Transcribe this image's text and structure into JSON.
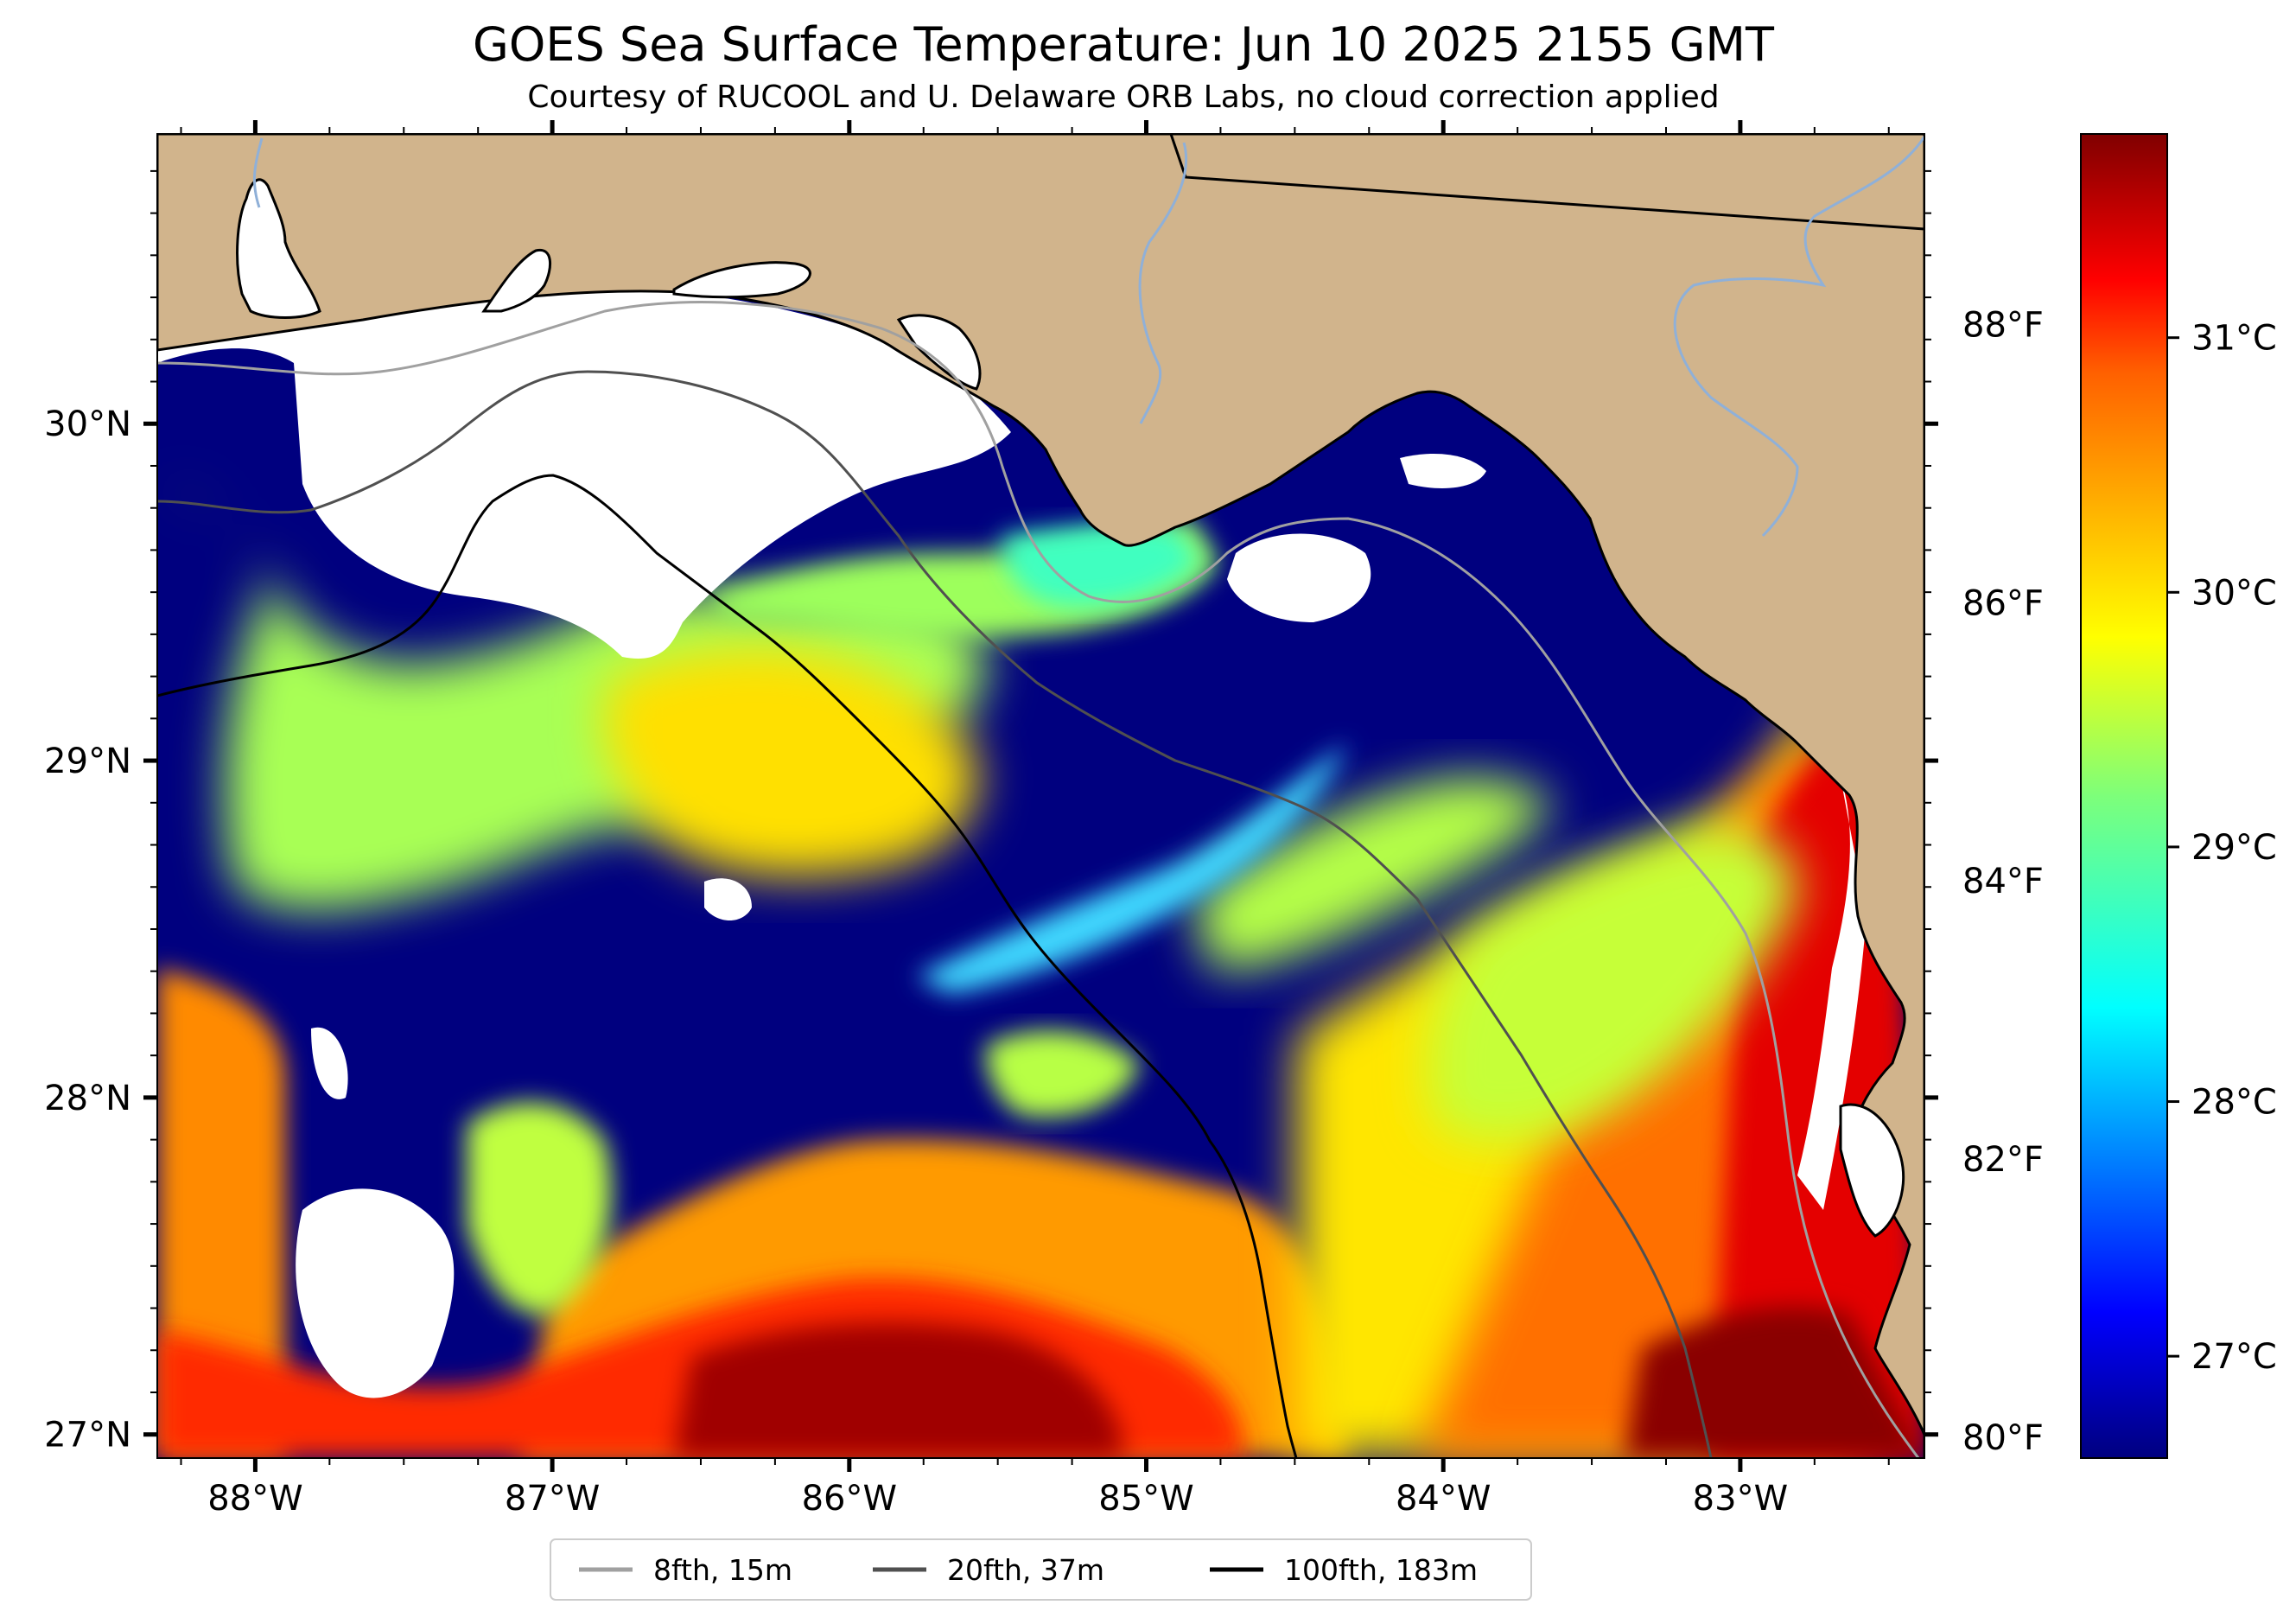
{
  "figure": {
    "title": "GOES Sea Surface Temperature: Jun 10 2025 2155 GMT",
    "subtitle": "Courtesy of RUCOOL and U. Delaware ORB Labs, no cloud correction applied"
  },
  "map": {
    "extent": {
      "lon_min": -88.33,
      "lon_max": -82.38,
      "lat_min": 26.93,
      "lat_max": 30.86
    },
    "colors": {
      "land": "#d1b48c",
      "cloud_no_data": "#ffffff",
      "coastline": "#000000",
      "rivers": "#8fb0d8"
    },
    "lon_ticks": [
      {
        "value": -88,
        "label": "88°W"
      },
      {
        "value": -87,
        "label": "87°W"
      },
      {
        "value": -86,
        "label": "86°W"
      },
      {
        "value": -85,
        "label": "85°W"
      },
      {
        "value": -84,
        "label": "84°W"
      },
      {
        "value": -83,
        "label": "83°W"
      }
    ],
    "lat_ticks": [
      {
        "value": 30,
        "label": "30°N"
      },
      {
        "value": 29,
        "label": "29°N"
      },
      {
        "value": 28,
        "label": "28°N"
      },
      {
        "value": 27,
        "label": "27°N"
      }
    ],
    "fahrenheit_ticks": [
      {
        "value": 88,
        "label": "88°F"
      },
      {
        "value": 86,
        "label": "86°F"
      },
      {
        "value": 84,
        "label": "84°F"
      },
      {
        "value": 82,
        "label": "82°F"
      },
      {
        "value": 80,
        "label": "80°F"
      }
    ]
  },
  "colorbar": {
    "colormap": "jet",
    "range_c": [
      26.6,
      31.8
    ],
    "ticks": [
      {
        "value": 31,
        "label": "31°C"
      },
      {
        "value": 30,
        "label": "30°C"
      },
      {
        "value": 29,
        "label": "29°C"
      },
      {
        "value": 28,
        "label": "28°C"
      },
      {
        "value": 27,
        "label": "27°C"
      }
    ]
  },
  "legend": {
    "location": "bottom-center",
    "items": [
      {
        "label": "8fth, 15m",
        "color": "#a0a0a0"
      },
      {
        "label": "20fth, 37m",
        "color": "#505050"
      },
      {
        "label": "100fth, 183m",
        "color": "#000000"
      }
    ]
  }
}
